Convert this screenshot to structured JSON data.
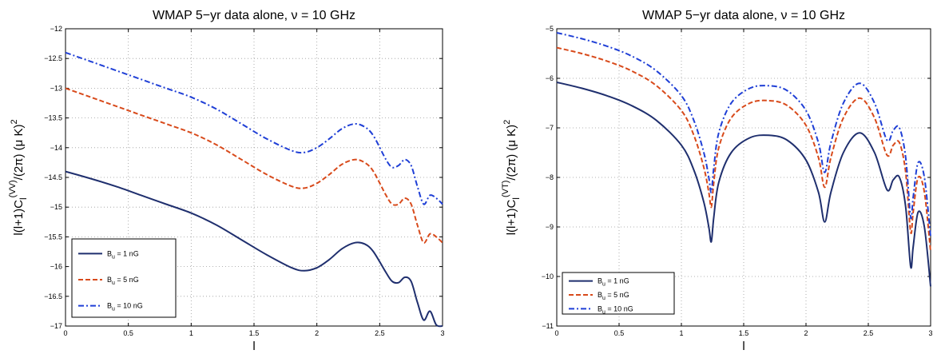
{
  "chart_data": [
    {
      "type": "line",
      "title": "WMAP 5−yr data alone, ν = 10 GHz",
      "xlabel": "l",
      "ylabel": "l(l+1)C_l^(VV)/(2π) (μ K)^2",
      "xlim": [
        0,
        3
      ],
      "ylim": [
        -17,
        -12
      ],
      "xticks": [
        "0",
        "0.5",
        "1",
        "1.5",
        "2",
        "2.5",
        "3"
      ],
      "yticks": [
        "−17",
        "−16.5",
        "−16",
        "−15.5",
        "−15",
        "−14.5",
        "−14",
        "−13.5",
        "−13",
        "−12.5",
        "−12"
      ],
      "grid": true,
      "legend_position": "lower-left",
      "series": [
        {
          "name": "B_u = 1 nG",
          "color": "#1f2f6e",
          "style": "solid",
          "x": [
            0,
            0.2,
            0.4,
            0.6,
            0.8,
            1.0,
            1.2,
            1.4,
            1.6,
            1.8,
            1.9,
            2.0,
            2.1,
            2.2,
            2.3,
            2.38,
            2.45,
            2.55,
            2.6,
            2.65,
            2.7,
            2.75,
            2.8,
            2.85,
            2.9,
            2.95,
            3.0
          ],
          "y": [
            -14.4,
            -14.52,
            -14.65,
            -14.8,
            -14.95,
            -15.1,
            -15.3,
            -15.55,
            -15.8,
            -16.02,
            -16.07,
            -16.02,
            -15.88,
            -15.7,
            -15.6,
            -15.62,
            -15.75,
            -16.1,
            -16.25,
            -16.27,
            -16.18,
            -16.25,
            -16.6,
            -16.9,
            -16.75,
            -16.98,
            -17.0
          ]
        },
        {
          "name": "B_u = 5 nG",
          "color": "#d84a1b",
          "style": "dashed",
          "x": [
            0,
            0.2,
            0.4,
            0.6,
            0.8,
            1.0,
            1.2,
            1.4,
            1.6,
            1.8,
            1.9,
            2.0,
            2.1,
            2.2,
            2.3,
            2.38,
            2.45,
            2.55,
            2.6,
            2.65,
            2.7,
            2.75,
            2.8,
            2.85,
            2.9,
            2.95,
            3.0
          ],
          "y": [
            -13.0,
            -13.15,
            -13.3,
            -13.45,
            -13.6,
            -13.75,
            -13.95,
            -14.2,
            -14.45,
            -14.65,
            -14.68,
            -14.6,
            -14.45,
            -14.28,
            -14.2,
            -14.25,
            -14.4,
            -14.8,
            -14.95,
            -14.95,
            -14.85,
            -14.95,
            -15.3,
            -15.6,
            -15.45,
            -15.5,
            -15.6
          ]
        },
        {
          "name": "B_u = 10 nG",
          "color": "#1f3fd6",
          "style": "dashdot",
          "x": [
            0,
            0.2,
            0.4,
            0.6,
            0.8,
            1.0,
            1.2,
            1.4,
            1.6,
            1.8,
            1.9,
            2.0,
            2.1,
            2.2,
            2.3,
            2.38,
            2.45,
            2.55,
            2.6,
            2.65,
            2.7,
            2.75,
            2.8,
            2.85,
            2.9,
            2.95,
            3.0
          ],
          "y": [
            -12.4,
            -12.55,
            -12.7,
            -12.85,
            -13.0,
            -13.15,
            -13.35,
            -13.6,
            -13.85,
            -14.05,
            -14.08,
            -14.0,
            -13.85,
            -13.68,
            -13.6,
            -13.65,
            -13.8,
            -14.2,
            -14.33,
            -14.3,
            -14.2,
            -14.3,
            -14.65,
            -14.95,
            -14.8,
            -14.85,
            -14.95
          ]
        }
      ]
    },
    {
      "type": "line",
      "title": "WMAP 5−yr data alone, ν = 10 GHz",
      "xlabel": "l",
      "ylabel": "l(l+1)C_l^(VT)/(2π) (μ K)^2",
      "xlim": [
        0,
        3
      ],
      "ylim": [
        -11,
        -5
      ],
      "xticks": [
        "0",
        "0.5",
        "1",
        "1.5",
        "2",
        "2.5",
        "3"
      ],
      "yticks": [
        "−11",
        "−10",
        "−9",
        "−8",
        "−7",
        "−6",
        "−5"
      ],
      "grid": true,
      "legend_position": "lower-left",
      "series": [
        {
          "name": "B_u = 1 nG",
          "color": "#1f2f6e",
          "style": "solid",
          "x": [
            0,
            0.2,
            0.4,
            0.6,
            0.8,
            1.0,
            1.1,
            1.18,
            1.22,
            1.24,
            1.26,
            1.3,
            1.4,
            1.55,
            1.7,
            1.85,
            2.0,
            2.1,
            2.15,
            2.2,
            2.3,
            2.43,
            2.55,
            2.65,
            2.7,
            2.75,
            2.8,
            2.84,
            2.86,
            2.9,
            2.95,
            3.0
          ],
          "y": [
            -6.08,
            -6.2,
            -6.35,
            -6.55,
            -6.85,
            -7.35,
            -7.85,
            -8.5,
            -9.0,
            -9.3,
            -8.8,
            -8.1,
            -7.5,
            -7.2,
            -7.15,
            -7.25,
            -7.65,
            -8.3,
            -8.9,
            -8.3,
            -7.5,
            -7.1,
            -7.5,
            -8.25,
            -8.05,
            -8.0,
            -8.6,
            -9.8,
            -9.4,
            -8.7,
            -9.0,
            -10.2
          ]
        },
        {
          "name": "B_u = 5 nG",
          "color": "#d84a1b",
          "style": "dashed",
          "x": [
            0,
            0.2,
            0.4,
            0.6,
            0.8,
            1.0,
            1.1,
            1.18,
            1.22,
            1.24,
            1.26,
            1.3,
            1.4,
            1.55,
            1.7,
            1.85,
            2.0,
            2.1,
            2.15,
            2.2,
            2.3,
            2.43,
            2.55,
            2.65,
            2.7,
            2.75,
            2.8,
            2.84,
            2.86,
            2.9,
            2.95,
            3.0
          ],
          "y": [
            -5.38,
            -5.5,
            -5.65,
            -5.85,
            -6.15,
            -6.65,
            -7.15,
            -7.8,
            -8.3,
            -8.6,
            -8.1,
            -7.4,
            -6.8,
            -6.5,
            -6.45,
            -6.55,
            -6.95,
            -7.6,
            -8.2,
            -7.6,
            -6.8,
            -6.4,
            -6.8,
            -7.55,
            -7.35,
            -7.3,
            -7.9,
            -9.1,
            -8.7,
            -8.0,
            -8.3,
            -9.5
          ]
        },
        {
          "name": "B_u = 10 nG",
          "color": "#1f3fd6",
          "style": "dashdot",
          "x": [
            0,
            0.2,
            0.4,
            0.6,
            0.8,
            1.0,
            1.1,
            1.18,
            1.22,
            1.24,
            1.26,
            1.3,
            1.4,
            1.55,
            1.7,
            1.85,
            2.0,
            2.1,
            2.15,
            2.2,
            2.3,
            2.43,
            2.55,
            2.65,
            2.7,
            2.75,
            2.8,
            2.84,
            2.86,
            2.9,
            2.95,
            3.0
          ],
          "y": [
            -5.08,
            -5.2,
            -5.35,
            -5.55,
            -5.85,
            -6.35,
            -6.85,
            -7.5,
            -8.0,
            -8.3,
            -7.8,
            -7.1,
            -6.5,
            -6.2,
            -6.15,
            -6.25,
            -6.65,
            -7.3,
            -7.9,
            -7.3,
            -6.5,
            -6.1,
            -6.5,
            -7.25,
            -7.05,
            -7.0,
            -7.6,
            -8.8,
            -8.4,
            -7.7,
            -8.0,
            -9.2
          ]
        }
      ]
    }
  ]
}
